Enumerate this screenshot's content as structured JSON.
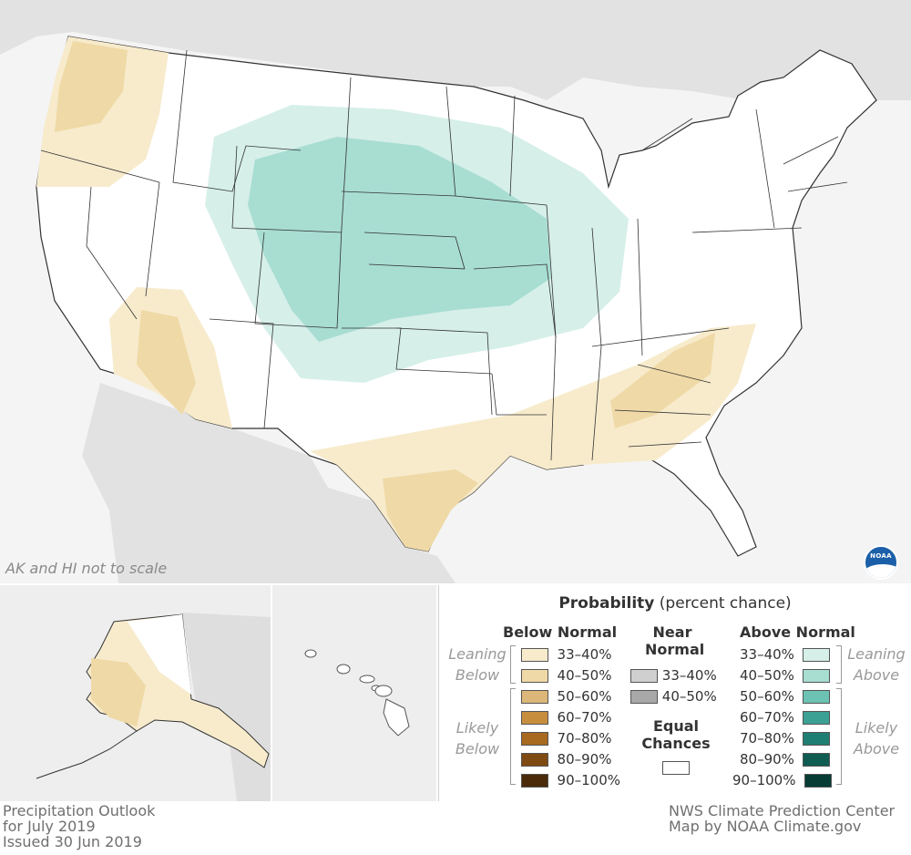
{
  "map": {
    "scale_note": "AK and HI not to scale",
    "logo_text": "NOAA"
  },
  "legend": {
    "title_bold": "Probability",
    "title_rest": "(percent chance)",
    "below": {
      "header": "Below Normal",
      "leaning": "Leaning Below",
      "likely": "Likely Below",
      "items": [
        {
          "label": "33–40%",
          "color": "#f7ebcc"
        },
        {
          "label": "40–50%",
          "color": "#efd9a6"
        },
        {
          "label": "50–60%",
          "color": "#dcb779"
        },
        {
          "label": "60–70%",
          "color": "#c78f3d"
        },
        {
          "label": "70–80%",
          "color": "#a76a1f"
        },
        {
          "label": "80–90%",
          "color": "#7e4a12"
        },
        {
          "label": "90–100%",
          "color": "#4a2a08"
        }
      ]
    },
    "near": {
      "header_line1": "Near",
      "header_line2": "Normal",
      "items": [
        {
          "label": "33–40%",
          "color": "#cfcfcf"
        },
        {
          "label": "40–50%",
          "color": "#a8a8a8"
        }
      ],
      "equal_line1": "Equal",
      "equal_line2": "Chances",
      "equal_color": "#ffffff"
    },
    "above": {
      "header": "Above Normal",
      "leaning": "Leaning Above",
      "likely": "Likely Above",
      "items": [
        {
          "label": "33–40%",
          "color": "#d6efe9"
        },
        {
          "label": "40–50%",
          "color": "#a8ddd2"
        },
        {
          "label": "50–60%",
          "color": "#6cc3b3"
        },
        {
          "label": "60–70%",
          "color": "#3ba194"
        },
        {
          "label": "70–80%",
          "color": "#1f7e72"
        },
        {
          "label": "80–90%",
          "color": "#0f5c52"
        },
        {
          "label": "90–100%",
          "color": "#063c34"
        }
      ]
    }
  },
  "footer": {
    "left_line1": "Precipitation Outlook",
    "left_line2": "for July 2019",
    "left_line3": "Issued 30 Jun 2019",
    "right_line1": "NWS Climate Prediction Center",
    "right_line2": "Map by NOAA Climate.gov"
  }
}
